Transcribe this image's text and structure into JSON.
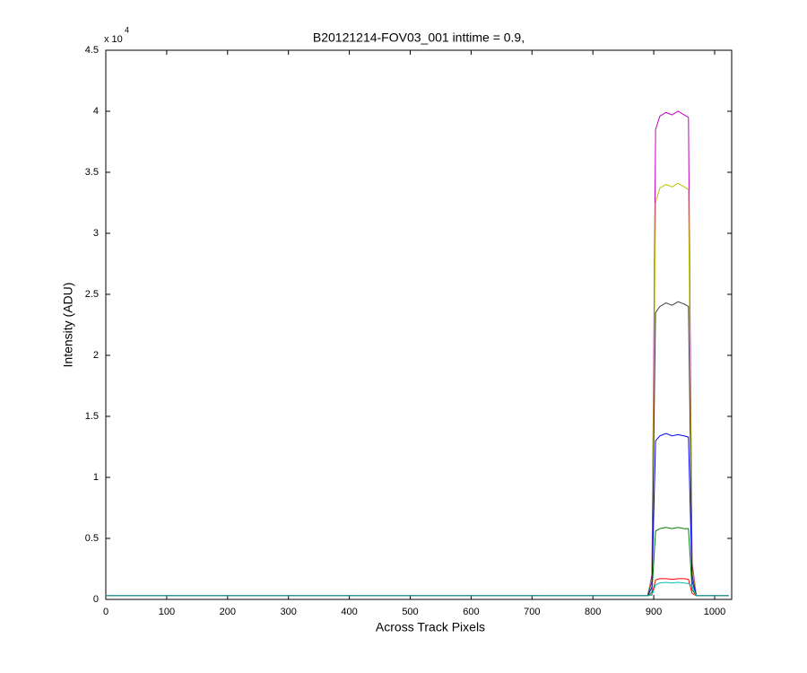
{
  "chart_data": {
    "type": "line",
    "title": "B20121214-FOV03_001 inttime = 0.9,",
    "x_label": "Across Track Pixels",
    "y_label": "Intensity (ADU)",
    "y_scale_label": {
      "base": "x 10",
      "exponent": "4"
    },
    "x": [
      0,
      100,
      200,
      300,
      400,
      500,
      600,
      700,
      800,
      890,
      897,
      903,
      910,
      920,
      930,
      940,
      950,
      957,
      963,
      970,
      1023
    ],
    "series": [
      {
        "color": "#bf00bf",
        "values": [
          300,
          300,
          300,
          300,
          300,
          300,
          300,
          300,
          300,
          300,
          2000,
          38500,
          39600,
          39900,
          39700,
          40000,
          39700,
          39500,
          3000,
          300,
          300
        ]
      },
      {
        "color": "#bfbf00",
        "values": [
          300,
          300,
          300,
          300,
          300,
          300,
          300,
          300,
          300,
          300,
          1800,
          32500,
          33700,
          34000,
          33800,
          34100,
          33800,
          33600,
          2500,
          300,
          300
        ]
      },
      {
        "color": "#404040",
        "values": [
          300,
          300,
          300,
          300,
          300,
          300,
          300,
          300,
          300,
          300,
          1500,
          23500,
          24000,
          24300,
          24100,
          24400,
          24200,
          24000,
          2000,
          300,
          300
        ]
      },
      {
        "color": "#0000ff",
        "values": [
          300,
          300,
          300,
          300,
          300,
          300,
          300,
          300,
          300,
          300,
          1000,
          13000,
          13400,
          13600,
          13400,
          13500,
          13400,
          13300,
          1500,
          300,
          300
        ]
      },
      {
        "color": "#008000",
        "values": [
          300,
          300,
          300,
          300,
          300,
          300,
          300,
          300,
          300,
          300,
          600,
          5600,
          5800,
          5900,
          5800,
          5900,
          5800,
          5800,
          800,
          300,
          300
        ]
      },
      {
        "color": "#ff0000",
        "values": [
          300,
          300,
          300,
          300,
          300,
          300,
          300,
          300,
          300,
          300,
          400,
          1600,
          1700,
          1700,
          1650,
          1700,
          1700,
          1650,
          500,
          300,
          300
        ]
      },
      {
        "color": "#00bfbf",
        "values": [
          300,
          300,
          300,
          300,
          300,
          300,
          300,
          300,
          300,
          300,
          350,
          1200,
          1350,
          1400,
          1350,
          1400,
          1350,
          1300,
          1100,
          300,
          300
        ]
      }
    ],
    "xlim": [
      0,
      1028
    ],
    "ylim": [
      0,
      45000
    ],
    "xticks": [
      0,
      100,
      200,
      300,
      400,
      500,
      600,
      700,
      800,
      900,
      1000
    ],
    "yticks": [
      {
        "value": 0,
        "label": "0"
      },
      {
        "value": 5000,
        "label": "0.5"
      },
      {
        "value": 10000,
        "label": "1"
      },
      {
        "value": 15000,
        "label": "1.5"
      },
      {
        "value": 20000,
        "label": "2"
      },
      {
        "value": 25000,
        "label": "2.5"
      },
      {
        "value": 30000,
        "label": "3"
      },
      {
        "value": 35000,
        "label": "3.5"
      },
      {
        "value": 40000,
        "label": "4"
      },
      {
        "value": 45000,
        "label": "4.5"
      }
    ],
    "grid": false
  }
}
